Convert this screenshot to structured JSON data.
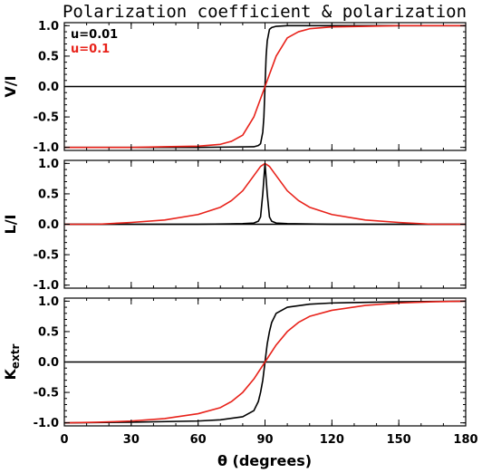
{
  "chart_data": {
    "type": "line",
    "title": "Polarization coefficient & polarization",
    "xlabel": "θ (degrees)",
    "xlim": [
      0,
      180
    ],
    "x_ticks": [
      "0",
      "30",
      "60",
      "90",
      "120",
      "150",
      "180"
    ],
    "y_ticks": [
      "-1.0",
      "-0.5",
      "0.0",
      "0.5",
      "1.0"
    ],
    "legend_location": "top-left of first panel",
    "colors": {
      "u001": "#000000",
      "u01": "#e8221a"
    },
    "panels": [
      {
        "ylabel": "V/I",
        "ylim": [
          -1.05,
          1.05
        ],
        "legend": [
          {
            "label": "u=0.01",
            "color": "#000000"
          },
          {
            "label": "u=0.1",
            "color": "#e8221a"
          }
        ],
        "series": [
          {
            "name": "u=0.01",
            "color": "#000000",
            "x": [
              0,
              60,
              85,
              87,
              88,
              89,
              89.5,
              90,
              90.5,
              91,
              92,
              93,
              95,
              100,
              120,
              150,
              180
            ],
            "y": [
              -1.0,
              -1.0,
              -0.99,
              -0.97,
              -0.94,
              -0.75,
              -0.5,
              0.0,
              0.5,
              0.75,
              0.94,
              0.97,
              0.99,
              1.0,
              1.0,
              1.0,
              1.0
            ]
          },
          {
            "name": "u=0.1",
            "color": "#e8221a",
            "x": [
              0,
              30,
              45,
              60,
              70,
              75,
              80,
              85,
              90,
              95,
              100,
              105,
              110,
              120,
              135,
              150,
              180
            ],
            "y": [
              -1.0,
              -1.0,
              -0.99,
              -0.98,
              -0.95,
              -0.9,
              -0.8,
              -0.5,
              0.0,
              0.5,
              0.8,
              0.9,
              0.95,
              0.98,
              0.99,
              1.0,
              1.0
            ]
          }
        ]
      },
      {
        "ylabel": "L/I",
        "ylim": [
          -1.05,
          1.05
        ],
        "series": [
          {
            "name": "u=0.01",
            "color": "#000000",
            "x": [
              0,
              60,
              80,
              85,
              87,
              88,
              89,
              90,
              91,
              92,
              93,
              95,
              100,
              120,
              180
            ],
            "y": [
              0.0,
              0.0,
              0.01,
              0.02,
              0.05,
              0.12,
              0.5,
              1.0,
              0.5,
              0.12,
              0.05,
              0.02,
              0.01,
              0.0,
              0.0
            ]
          },
          {
            "name": "u=0.1",
            "color": "#e8221a",
            "x": [
              0,
              15,
              30,
              45,
              60,
              70,
              75,
              80,
              85,
              88,
              90,
              92,
              95,
              100,
              105,
              110,
              120,
              135,
              150,
              165,
              180
            ],
            "y": [
              0.0,
              0.0,
              0.03,
              0.07,
              0.16,
              0.28,
              0.39,
              0.55,
              0.8,
              0.95,
              1.0,
              0.95,
              0.8,
              0.55,
              0.39,
              0.28,
              0.16,
              0.07,
              0.03,
              0.0,
              0.0
            ]
          }
        ]
      },
      {
        "ylabel": "K",
        "ylabel_sub": "extr",
        "ylim": [
          -1.05,
          1.05
        ],
        "series": [
          {
            "name": "u=0.01",
            "color": "#000000",
            "x": [
              0,
              30,
              60,
              70,
              80,
              85,
              87,
              88,
              89,
              90,
              91,
              92,
              93,
              95,
              100,
              110,
              120,
              150,
              180
            ],
            "y": [
              -1.0,
              -0.99,
              -0.97,
              -0.95,
              -0.9,
              -0.8,
              -0.65,
              -0.5,
              -0.3,
              0.0,
              0.3,
              0.5,
              0.65,
              0.8,
              0.9,
              0.95,
              0.97,
              0.99,
              1.0
            ]
          },
          {
            "name": "u=0.1",
            "color": "#e8221a",
            "x": [
              0,
              15,
              30,
              45,
              60,
              70,
              75,
              80,
              85,
              90,
              95,
              100,
              105,
              110,
              120,
              135,
              150,
              165,
              180
            ],
            "y": [
              -1.0,
              -0.99,
              -0.97,
              -0.93,
              -0.85,
              -0.75,
              -0.65,
              -0.5,
              -0.28,
              0.0,
              0.28,
              0.5,
              0.65,
              0.75,
              0.85,
              0.93,
              0.97,
              0.99,
              1.0
            ]
          }
        ]
      }
    ]
  }
}
